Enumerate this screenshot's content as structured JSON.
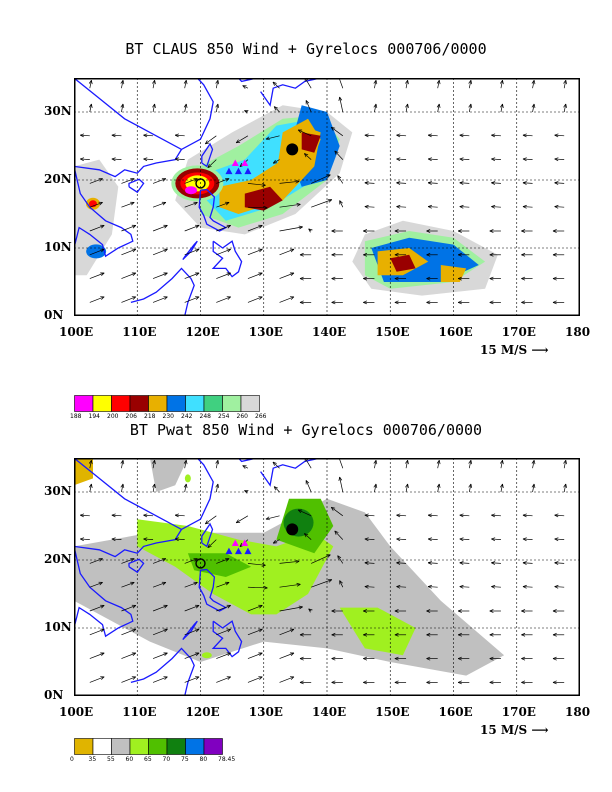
{
  "panels": [
    {
      "title": "BT CLAUS 850 Wind + Gyrelocs 000706/0000",
      "field": "CLAUS brightness temperature",
      "lat_labels": [
        "30N",
        "20N",
        "10N",
        "0N"
      ],
      "lon_labels": [
        "100E",
        "110E",
        "120E",
        "130E",
        "140E",
        "150E",
        "160E",
        "170E",
        "180"
      ],
      "vector_scale_label": "15 M/S",
      "legend": {
        "labels": [
          "188",
          "194",
          "200",
          "206",
          "218",
          "230",
          "242",
          "248",
          "254",
          "260",
          "266"
        ],
        "colors": [
          "#ff00ff",
          "#ffff00",
          "#ff0000",
          "#990000",
          "#e8b000",
          "#0073e6",
          "#40e0ff",
          "#40d080",
          "#a0f0a0",
          "#d8d8d8"
        ]
      }
    },
    {
      "title": "BT Pwat 850 Wind + Gyrelocs 000706/0000",
      "field": "Precipitable water",
      "lat_labels": [
        "30N",
        "20N",
        "10N",
        "0N"
      ],
      "lon_labels": [
        "100E",
        "110E",
        "120E",
        "130E",
        "140E",
        "150E",
        "160E",
        "170E",
        "180"
      ],
      "vector_scale_label": "15 M/S",
      "legend": {
        "labels": [
          "0",
          "35",
          "55",
          "60",
          "65",
          "70",
          "75",
          "80",
          "78.45"
        ],
        "colors": [
          "#e0b400",
          "#ffffff",
          "#c0c0c0",
          "#a0f020",
          "#50c000",
          "#108010",
          "#0073e6",
          "#8000c0"
        ]
      }
    }
  ],
  "gyre_markers": {
    "triangles_magenta": [
      [
        125.5,
        22.5
      ],
      [
        127,
        22.5
      ]
    ],
    "triangles_blue": [
      [
        124.5,
        21.3
      ],
      [
        126,
        21.3
      ],
      [
        127.5,
        21.3
      ]
    ],
    "circles": [
      [
        134.5,
        24.5
      ],
      [
        120,
        19.5
      ]
    ]
  },
  "map_extent": {
    "lon": [
      100,
      180
    ],
    "lat": [
      0,
      35
    ]
  }
}
